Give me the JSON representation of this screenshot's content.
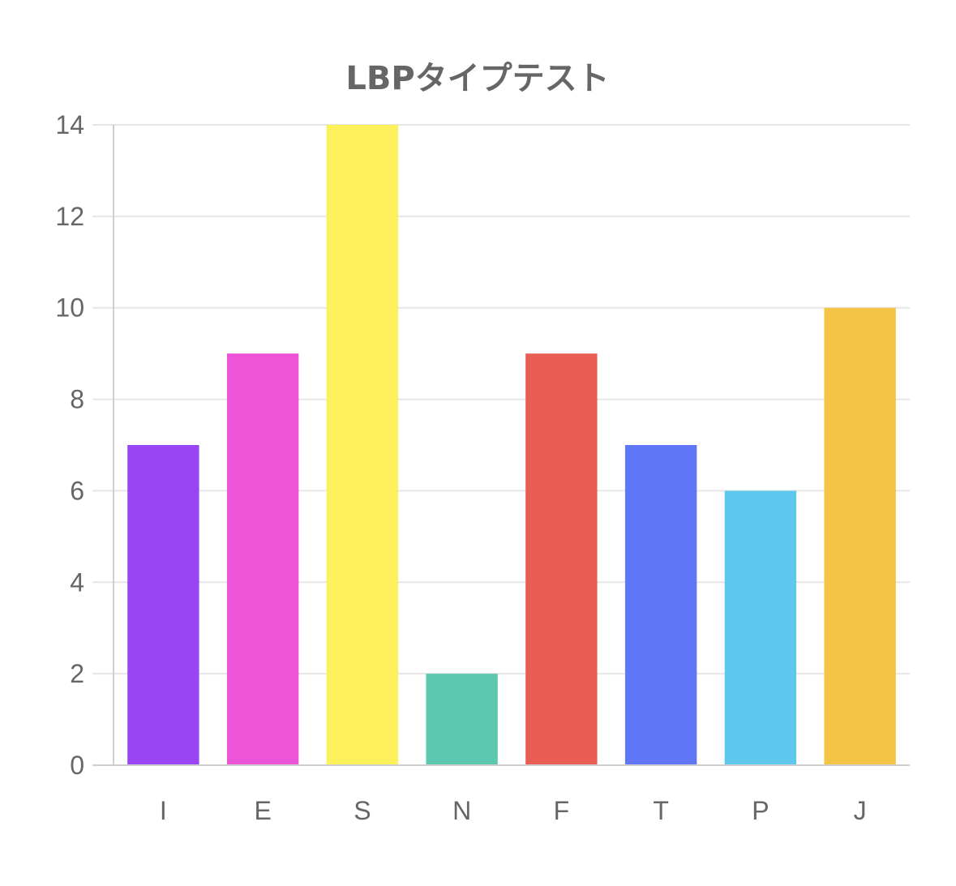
{
  "chart_data": {
    "type": "bar",
    "title": "LBPタイプテスト",
    "categories": [
      "I",
      "E",
      "S",
      "N",
      "F",
      "T",
      "P",
      "J"
    ],
    "values": [
      7,
      9,
      14,
      2,
      9,
      7,
      6,
      10
    ],
    "colors": [
      "#9945f3",
      "#ec55d8",
      "#fcf15a",
      "#5cc8b0",
      "#ea5d55",
      "#5f76f7",
      "#5ec7ee",
      "#f4c447"
    ],
    "xlabel": "",
    "ylabel": "",
    "ylim": [
      0,
      14
    ],
    "yticks": [
      0,
      2,
      4,
      6,
      8,
      10,
      12,
      14
    ],
    "grid": true,
    "legend": "none"
  }
}
